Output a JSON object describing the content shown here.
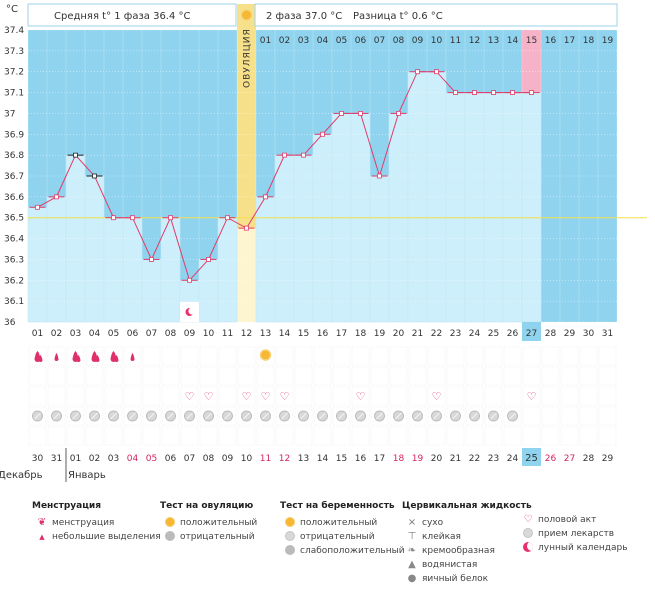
{
  "chart_data": {
    "type": "line",
    "ylabel": "°C",
    "ylim": [
      36,
      37.4
    ],
    "yticks": [
      "37.4",
      "37.3",
      "37.2",
      "37.1",
      "37",
      "36.9",
      "36.8",
      "36.7",
      "36.6",
      "36.5",
      "36.4",
      "36.3",
      "36.2",
      "36.1",
      "36"
    ],
    "header": {
      "phase1": "Средняя t° 1 фаза 36.4 °C",
      "phase2": "2 фаза 37.0 °C",
      "diff": "Разница t° 0.6 °C"
    },
    "ovulation_label": "ОВУЛЯЦИЯ",
    "ovulation_day_index": 11,
    "cycle_days_top": [
      "01",
      "02",
      "03",
      "04",
      "05",
      "06",
      "07",
      "08",
      "09",
      "10",
      "11",
      "12",
      "13",
      "14",
      "15",
      "16",
      "17",
      "18",
      "19"
    ],
    "days": [
      "01",
      "02",
      "03",
      "04",
      "05",
      "06",
      "07",
      "08",
      "09",
      "10",
      "11",
      "12",
      "13",
      "14",
      "15",
      "16",
      "17",
      "18",
      "19",
      "20",
      "21",
      "22",
      "23",
      "24",
      "25",
      "26",
      "27",
      "28",
      "29",
      "30",
      "31"
    ],
    "today_index": 26,
    "temperatures": [
      36.55,
      36.6,
      36.8,
      36.7,
      36.5,
      36.5,
      36.3,
      36.5,
      36.2,
      36.3,
      36.5,
      36.45,
      36.6,
      36.8,
      36.8,
      36.9,
      37.0,
      37.0,
      36.7,
      37.0,
      37.2,
      37.2,
      37.1,
      37.1,
      37.1,
      37.1,
      37.1
    ],
    "excluded_points": [
      2,
      3
    ],
    "coverline": 36.5,
    "dates_bottom": [
      "30",
      "31",
      "01",
      "02",
      "03",
      "04",
      "05",
      "06",
      "07",
      "08",
      "09",
      "10",
      "11",
      "12",
      "13",
      "14",
      "15",
      "16",
      "17",
      "18",
      "19",
      "20",
      "21",
      "22",
      "23",
      "24",
      "25",
      "26",
      "27",
      "28",
      "29"
    ],
    "dates_weekend_indices": [
      5,
      6,
      12,
      13,
      19,
      20,
      27,
      28
    ],
    "today_date": "25",
    "month_prev": "Декабрь",
    "month_next": "Январь",
    "rows": {
      "menstruation": [
        2,
        1,
        2,
        2,
        2,
        1
      ],
      "ovulation_test_positive": [
        12
      ],
      "intercourse": [
        8,
        9,
        11,
        12,
        13,
        17,
        21,
        26
      ],
      "pills": [
        0,
        1,
        2,
        3,
        4,
        5,
        6,
        7,
        8,
        9,
        10,
        11,
        12,
        13,
        14,
        15,
        16,
        17,
        18,
        19,
        20,
        21,
        22,
        23,
        24,
        25
      ],
      "moon_day_index": 8
    }
  },
  "legend": {
    "menstruation": {
      "title": "Менструация",
      "items": [
        "менструация",
        "небольшие выделения"
      ]
    },
    "ovulation_test": {
      "title": "Тест на овуляцию",
      "items": [
        "положительный",
        "отрицательный"
      ]
    },
    "pregnancy_test": {
      "title": "Тест на беременность",
      "items": [
        "положительный",
        "отрицательный",
        "слабоположительный"
      ]
    },
    "cervical": {
      "title": "Цервикальная жидкость",
      "items": [
        "сухо",
        "клейкая",
        "кремообразная",
        "водянистая",
        "яичный белок"
      ]
    },
    "other": {
      "items": [
        "половой акт",
        "прием лекарств",
        "лунный календарь"
      ]
    }
  },
  "colors": {
    "bg": "#8fd3ef",
    "bar": "#cdeffb",
    "bar_stroke": "#a9dcef",
    "line": "#e03c6a",
    "ovulation": "#f7e08a",
    "today": "#f6b3c8",
    "coverline": "#f4e04a"
  }
}
